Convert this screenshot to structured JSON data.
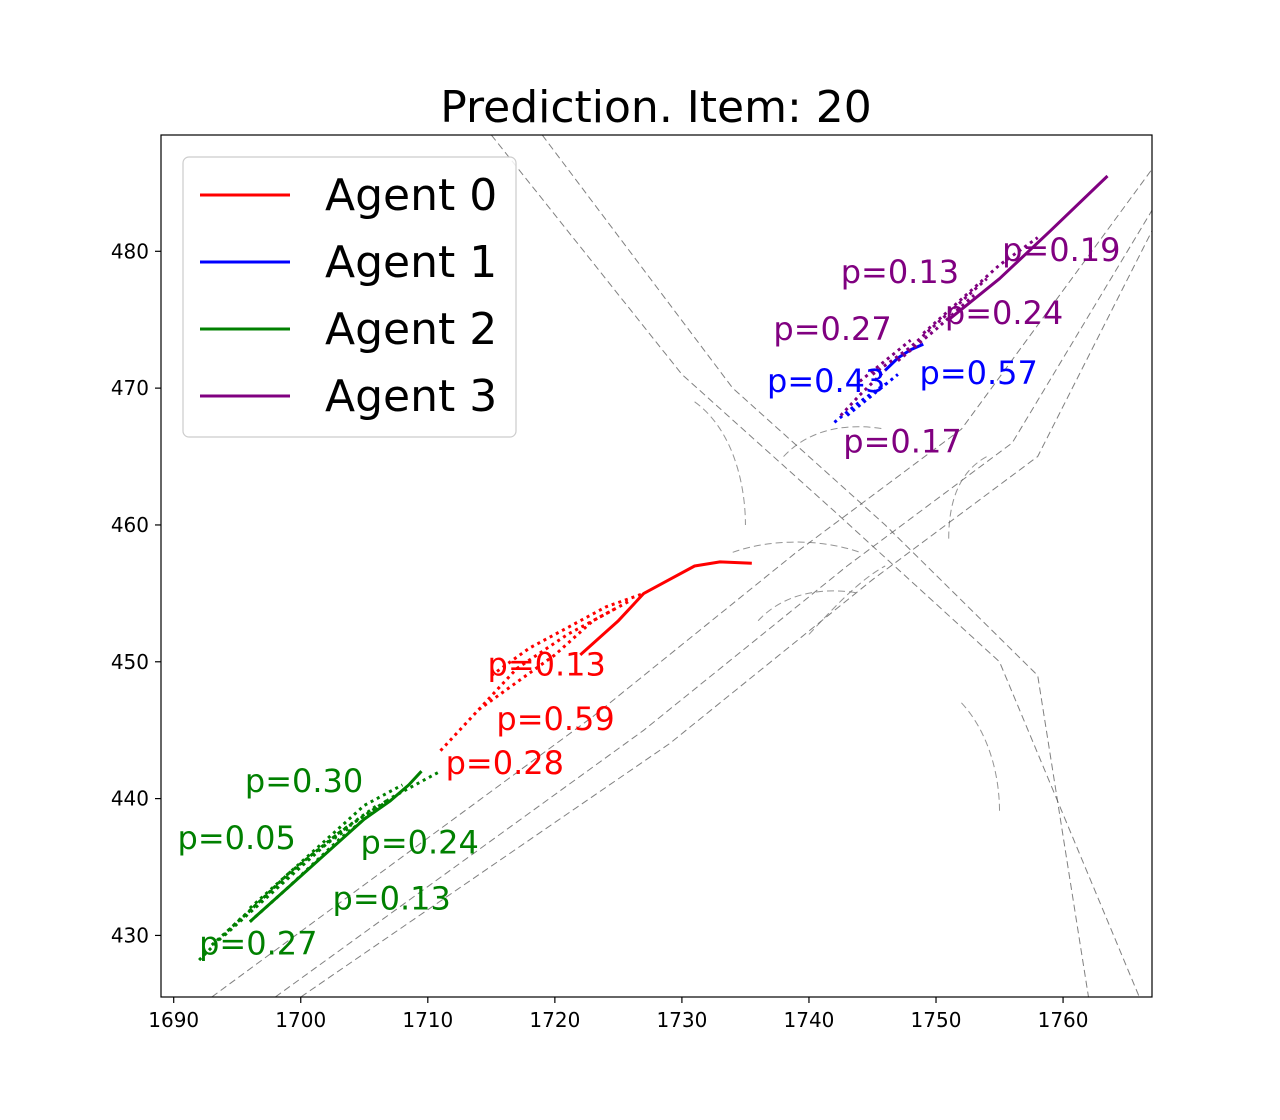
{
  "chart_data": {
    "type": "line",
    "title": "Prediction. Item: 20",
    "xlabel": "",
    "ylabel": "",
    "xlim": [
      1689,
      1767
    ],
    "ylim": [
      425.5,
      488.5
    ],
    "xticks": [
      1690,
      1700,
      1710,
      1720,
      1730,
      1740,
      1750,
      1760
    ],
    "yticks": [
      430,
      440,
      450,
      460,
      470,
      480
    ],
    "grid": false,
    "legend_position": "upper-left",
    "legend": [
      {
        "label": "Agent 0",
        "color": "#ff0000"
      },
      {
        "label": "Agent 1",
        "color": "#0000ff"
      },
      {
        "label": "Agent 2",
        "color": "#008000"
      },
      {
        "label": "Agent 3",
        "color": "#800080"
      }
    ],
    "map_lines": [
      [
        [
          1715,
          488.5
        ],
        [
          1730,
          471
        ],
        [
          1742,
          461
        ],
        [
          1755,
          450
        ],
        [
          1766,
          425.5
        ]
      ],
      [
        [
          1719,
          488.5
        ],
        [
          1734,
          470
        ],
        [
          1746,
          460
        ],
        [
          1758,
          449
        ],
        [
          1762,
          425.5
        ]
      ],
      [
        [
          1693,
          425.5
        ],
        [
          1723,
          446
        ],
        [
          1739,
          458
        ],
        [
          1752,
          467
        ],
        [
          1767,
          486
        ]
      ],
      [
        [
          1698,
          425.5
        ],
        [
          1727,
          445
        ],
        [
          1743,
          457
        ],
        [
          1756,
          466
        ],
        [
          1767,
          483
        ]
      ],
      [
        [
          1700,
          425.5
        ],
        [
          1729,
          444
        ],
        [
          1745,
          456
        ],
        [
          1758,
          465
        ],
        [
          1767,
          481.5
        ]
      ]
    ],
    "map_curves": [
      [
        [
          1731,
          469
        ],
        [
          1734,
          467
        ],
        [
          1735,
          463
        ],
        [
          1735,
          460
        ]
      ],
      [
        [
          1738,
          465
        ],
        [
          1740,
          467
        ],
        [
          1743,
          467.5
        ],
        [
          1746,
          467
        ]
      ],
      [
        [
          1734,
          458
        ],
        [
          1737,
          459
        ],
        [
          1741,
          459
        ],
        [
          1744,
          458
        ]
      ],
      [
        [
          1751,
          459
        ],
        [
          1751,
          462
        ],
        [
          1752,
          464
        ],
        [
          1754,
          465
        ]
      ],
      [
        [
          1736,
          453
        ],
        [
          1738,
          455
        ],
        [
          1741,
          455.5
        ],
        [
          1744,
          455
        ]
      ],
      [
        [
          1740,
          452
        ],
        [
          1742,
          454
        ],
        [
          1744,
          456
        ],
        [
          1746,
          457
        ]
      ],
      [
        [
          1752,
          447
        ],
        [
          1754,
          445
        ],
        [
          1755,
          442
        ],
        [
          1755,
          439
        ]
      ]
    ],
    "series": [
      {
        "agent": "Agent 0",
        "color": "#ff0000",
        "history": [
          [
            1722,
            450.5
          ],
          [
            1725,
            453
          ],
          [
            1727,
            455
          ],
          [
            1729,
            456
          ],
          [
            1731,
            457
          ],
          [
            1733,
            457.3
          ],
          [
            1735.5,
            457.2
          ]
        ],
        "predictions": [
          {
            "p": "p=0.13",
            "label_at": [
              1714.7,
              449
            ],
            "points": [
              [
                1715,
                449
              ],
              [
                1718,
                451
              ],
              [
                1721,
                452.5
              ],
              [
                1724,
                454
              ],
              [
                1727,
                455
              ]
            ]
          },
          {
            "p": "p=0.59",
            "label_at": [
              1715.4,
              445
            ],
            "points": [
              [
                1714,
                446.5
              ],
              [
                1717,
                448.5
              ],
              [
                1720,
                450.5
              ],
              [
                1723,
                453
              ],
              [
                1726,
                454.5
              ]
            ]
          },
          {
            "p": "p=0.28",
            "label_at": [
              1711.4,
              441.8
            ],
            "points": [
              [
                1711,
                443.5
              ],
              [
                1714,
                446.5
              ],
              [
                1717,
                449.5
              ],
              [
                1721,
                452
              ],
              [
                1725,
                454
              ]
            ]
          }
        ]
      },
      {
        "agent": "Agent 1",
        "color": "#0000ff",
        "history": [
          [
            1746,
            471.3
          ],
          [
            1747,
            472.2
          ],
          [
            1748,
            472.8
          ],
          [
            1749,
            473.2
          ]
        ],
        "predictions": [
          {
            "p": "p=0.43",
            "label_at": [
              1736.7,
              469.7
            ],
            "points": [
              [
                1742,
                467.5
              ],
              [
                1744,
                469
              ],
              [
                1746,
                470.3
              ]
            ]
          },
          {
            "p": "p=0.57",
            "label_at": [
              1748.7,
              470.3
            ],
            "points": [
              [
                1743,
                468
              ],
              [
                1745,
                469.5
              ],
              [
                1747,
                471
              ]
            ]
          }
        ]
      },
      {
        "agent": "Agent 2",
        "color": "#008000",
        "history": [
          [
            1696,
            431
          ],
          [
            1699,
            433.5
          ],
          [
            1702,
            436
          ],
          [
            1705,
            438.5
          ],
          [
            1707,
            439.8
          ],
          [
            1708.5,
            441
          ],
          [
            1709.5,
            442
          ]
        ],
        "predictions": [
          {
            "p": "p=0.30",
            "label_at": [
              1695.6,
              440.5
            ],
            "points": [
              [
                1696,
                432
              ],
              [
                1699,
                434.5
              ],
              [
                1702,
                437
              ],
              [
                1705,
                439.5
              ],
              [
                1708,
                441
              ]
            ]
          },
          {
            "p": "p=0.05",
            "label_at": [
              1690.3,
              436.3
            ],
            "points": [
              [
                1693,
                429.3
              ],
              [
                1696,
                431.8
              ],
              [
                1699,
                434.5
              ],
              [
                1703,
                437.5
              ],
              [
                1707,
                440
              ]
            ]
          },
          {
            "p": "p=0.24",
            "label_at": [
              1704.7,
              436
            ],
            "points": [
              [
                1696,
                431
              ],
              [
                1699,
                433.5
              ],
              [
                1703,
                437
              ],
              [
                1707,
                440
              ],
              [
                1711,
                442
              ]
            ]
          },
          {
            "p": "p=0.13",
            "label_at": [
              1702.5,
              431.9
            ],
            "points": [
              [
                1694,
                430
              ],
              [
                1697,
                432.5
              ],
              [
                1700,
                435
              ],
              [
                1703,
                437.5
              ],
              [
                1706,
                439.5
              ]
            ]
          },
          {
            "p": "p=0.27",
            "label_at": [
              1692,
              428.6
            ],
            "points": [
              [
                1692,
                428.2
              ],
              [
                1695,
                431
              ],
              [
                1698,
                433.5
              ],
              [
                1701,
                436
              ],
              [
                1704,
                438
              ]
            ]
          }
        ]
      },
      {
        "agent": "Agent 3",
        "color": "#800080",
        "history": [
          [
            1751,
            475
          ],
          [
            1755,
            478
          ],
          [
            1759,
            481.5
          ],
          [
            1763.5,
            485.5
          ]
        ],
        "predictions": [
          {
            "p": "p=0.13",
            "label_at": [
              1742.5,
              477.7
            ],
            "points": [
              [
                1745,
                471
              ],
              [
                1748,
                473
              ],
              [
                1751,
                475.5
              ],
              [
                1754,
                478
              ]
            ]
          },
          {
            "p": "p=0.19",
            "label_at": [
              1755.2,
              479.3
            ],
            "points": [
              [
                1749,
                474
              ],
              [
                1752,
                476.5
              ],
              [
                1755,
                479
              ],
              [
                1758,
                481
              ]
            ]
          },
          {
            "p": "p=0.27",
            "label_at": [
              1737.2,
              473.5
            ],
            "points": [
              [
                1744,
                470.5
              ],
              [
                1746,
                472
              ],
              [
                1748,
                473.5
              ]
            ]
          },
          {
            "p": "p=0.24",
            "label_at": [
              1750.7,
              474.7
            ],
            "points": [
              [
                1747,
                472
              ],
              [
                1750,
                474.3
              ],
              [
                1753,
                476.8
              ]
            ]
          },
          {
            "p": "p=0.17",
            "label_at": [
              1742.7,
              465.3
            ],
            "points": [
              [
                1742.5,
                468
              ],
              [
                1744,
                469.5
              ],
              [
                1746,
                471.3
              ]
            ]
          }
        ]
      }
    ]
  }
}
